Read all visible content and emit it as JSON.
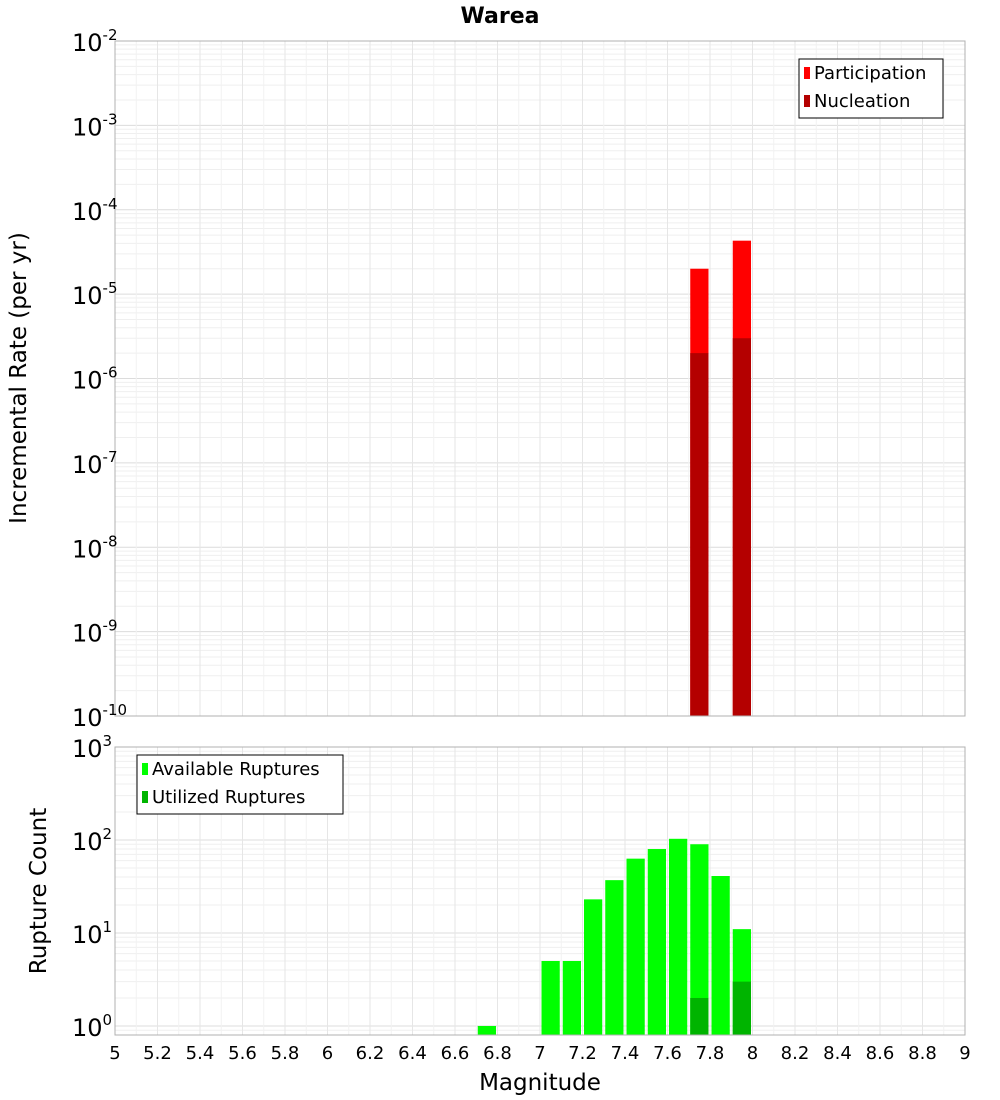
{
  "chart_data": [
    {
      "type": "bar",
      "title": "Warea",
      "xlabel": "Magnitude",
      "ylabel": "Incremental Rate (per yr)",
      "yscale": "log",
      "xlim": [
        5,
        9
      ],
      "ylim": [
        1e-10,
        0.01
      ],
      "grid": true,
      "legend_position": "top-right",
      "y_tick_exponents": [
        -10,
        -9,
        -8,
        -7,
        -6,
        -5,
        -4,
        -3,
        -2
      ],
      "bin_width": 0.1,
      "series": [
        {
          "name": "Participation",
          "color": "#ff0000",
          "x": [
            7.75,
            7.95
          ],
          "values": [
            2e-05,
            4.3e-05
          ]
        },
        {
          "name": "Nucleation",
          "color": "#b40000",
          "x": [
            7.75,
            7.95
          ],
          "values": [
            2e-06,
            3e-06
          ]
        }
      ]
    },
    {
      "type": "bar",
      "title": "",
      "xlabel": "Magnitude",
      "ylabel": "Rupture Count",
      "yscale": "log",
      "xlim": [
        5,
        9
      ],
      "ylim": [
        0.8,
        1000
      ],
      "grid": true,
      "legend_position": "top-left",
      "y_tick_exponents": [
        0,
        1,
        2,
        3
      ],
      "x_ticks": [
        "5",
        "5.2",
        "5.4",
        "5.6",
        "5.8",
        "6",
        "6.2",
        "6.4",
        "6.6",
        "6.8",
        "7",
        "7.2",
        "7.4",
        "7.6",
        "7.8",
        "8",
        "8.2",
        "8.4",
        "8.6",
        "8.8",
        "9"
      ],
      "bin_width": 0.1,
      "series": [
        {
          "name": "Available Ruptures",
          "color": "#00ff00",
          "x": [
            6.75,
            7.05,
            7.15,
            7.25,
            7.35,
            7.45,
            7.55,
            7.65,
            7.75,
            7.85,
            7.95
          ],
          "values": [
            1,
            5,
            5,
            23,
            37,
            63,
            80,
            103,
            90,
            41,
            11
          ]
        },
        {
          "name": "Utilized Ruptures",
          "color": "#00b400",
          "x": [
            7.75,
            7.95
          ],
          "values": [
            2,
            3
          ]
        }
      ]
    }
  ]
}
